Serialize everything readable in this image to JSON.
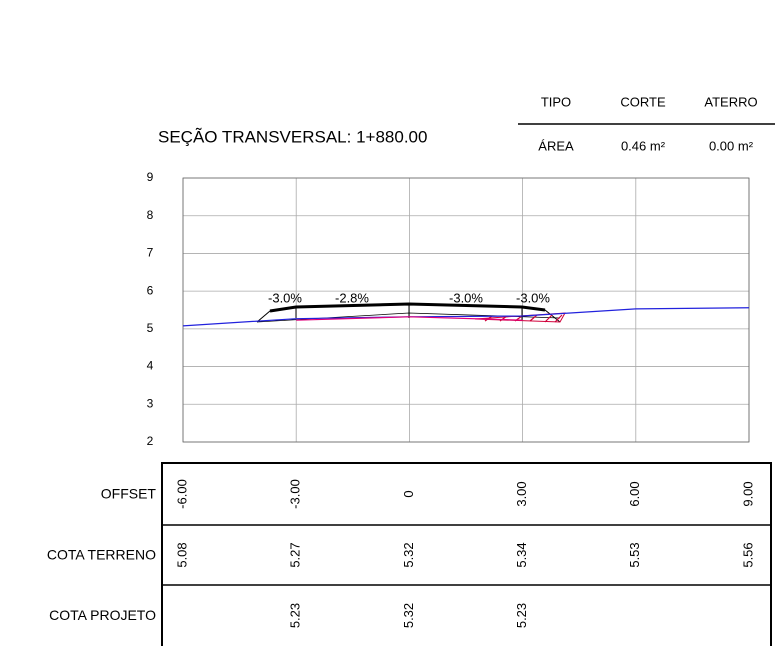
{
  "header": {
    "title": "SEÇÃO TRANSVERSAL: 1+880.00",
    "columns": [
      "TIPO",
      "CORTE",
      "ATERRO"
    ],
    "row": [
      "ÁREA",
      "0.46 m²",
      "0.00 m²"
    ]
  },
  "plot": {
    "xlim": [
      -6,
      9
    ],
    "ylim": [
      2,
      9
    ],
    "yticks": [
      2,
      3,
      4,
      5,
      6,
      7,
      8,
      9
    ],
    "slopes": [
      "-3.0%",
      "-2.8%",
      "-3.0%",
      "-3.0%"
    ]
  },
  "table": {
    "row_labels": [
      "OFFSET",
      "COTA TERRENO",
      "COTA PROJETO"
    ],
    "offsets": [
      {
        "value": -6,
        "label": "-6.00"
      },
      {
        "value": -3,
        "label": "-3.00"
      },
      0,
      {
        "value": 3,
        "label": "3.00"
      },
      {
        "value": 6,
        "label": "6.00"
      },
      {
        "value": 9,
        "label": "9.00"
      }
    ],
    "terreno": [
      5.08,
      5.27,
      5.32,
      5.34,
      5.53,
      5.56
    ],
    "projeto": [
      null,
      5.23,
      5.32,
      5.23,
      null,
      null
    ]
  }
}
